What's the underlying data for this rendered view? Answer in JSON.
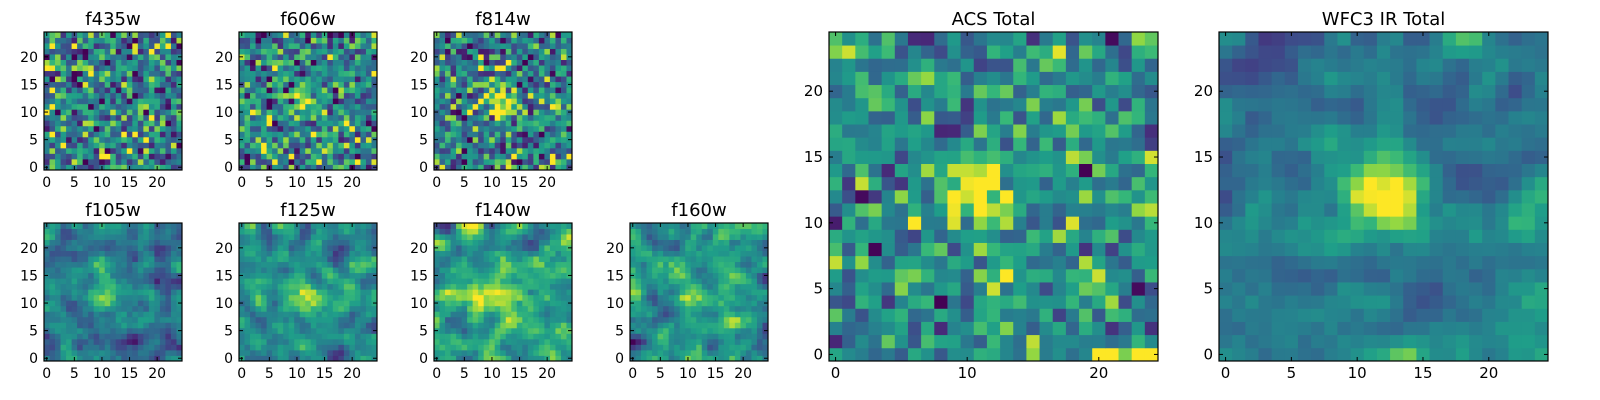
{
  "chart_data": [
    {
      "type": "heatmap",
      "title": "f435w",
      "x_ticks": [
        "0",
        "5",
        "10",
        "15",
        "20"
      ],
      "y_ticks": [
        "0",
        "5",
        "10",
        "15",
        "20"
      ],
      "grid": false,
      "colormap": "viridis",
      "pixel_grid": [
        25,
        25
      ],
      "feature": "none"
    },
    {
      "type": "heatmap",
      "title": "f606w",
      "x_ticks": [
        "0",
        "5",
        "10",
        "15",
        "20"
      ],
      "y_ticks": [
        "0",
        "5",
        "10",
        "15",
        "20"
      ],
      "grid": false,
      "colormap": "viridis",
      "pixel_grid": [
        25,
        25
      ],
      "feature": "faint central source"
    },
    {
      "type": "heatmap",
      "title": "f814w",
      "x_ticks": [
        "0",
        "5",
        "10",
        "15",
        "20"
      ],
      "y_ticks": [
        "0",
        "5",
        "10",
        "15",
        "20"
      ],
      "grid": false,
      "colormap": "viridis",
      "pixel_grid": [
        25,
        25
      ],
      "feature": "central source"
    },
    {
      "type": "heatmap",
      "title": "f105w",
      "x_ticks": [
        "0",
        "5",
        "10",
        "15",
        "20"
      ],
      "y_ticks": [
        "0",
        "5",
        "10",
        "15",
        "20"
      ],
      "grid": false,
      "colormap": "viridis",
      "pixel_grid": [
        25,
        25
      ],
      "feature": "central source"
    },
    {
      "type": "heatmap",
      "title": "f125w",
      "x_ticks": [
        "0",
        "5",
        "10",
        "15",
        "20"
      ],
      "y_ticks": [
        "0",
        "5",
        "10",
        "15",
        "20"
      ],
      "grid": false,
      "colormap": "viridis",
      "pixel_grid": [
        25,
        25
      ],
      "feature": "central source"
    },
    {
      "type": "heatmap",
      "title": "f140w",
      "x_ticks": [
        "0",
        "5",
        "10",
        "15",
        "20"
      ],
      "y_ticks": [
        "0",
        "5",
        "10",
        "15",
        "20"
      ],
      "grid": false,
      "colormap": "viridis",
      "pixel_grid": [
        25,
        25
      ],
      "feature": "central source"
    },
    {
      "type": "heatmap",
      "title": "f160w",
      "x_ticks": [
        "0",
        "5",
        "10",
        "15",
        "20"
      ],
      "y_ticks": [
        "0",
        "5",
        "10",
        "15",
        "20"
      ],
      "grid": false,
      "colormap": "viridis",
      "pixel_grid": [
        25,
        25
      ],
      "feature": "central source"
    },
    {
      "type": "heatmap",
      "title": "ACS Total",
      "x_ticks": [
        "0",
        "10",
        "20"
      ],
      "y_ticks": [
        "0",
        "5",
        "10",
        "15",
        "20"
      ],
      "grid": false,
      "colormap": "viridis",
      "pixel_grid": [
        25,
        25
      ],
      "feature": "bright central source"
    },
    {
      "type": "heatmap",
      "title": "WFC3 IR Total",
      "x_ticks": [
        "0",
        "5",
        "10",
        "15",
        "20"
      ],
      "y_ticks": [
        "0",
        "5",
        "10",
        "15",
        "20"
      ],
      "grid": false,
      "colormap": "viridis",
      "pixel_grid": [
        25,
        25
      ],
      "feature": "bright central source"
    }
  ]
}
